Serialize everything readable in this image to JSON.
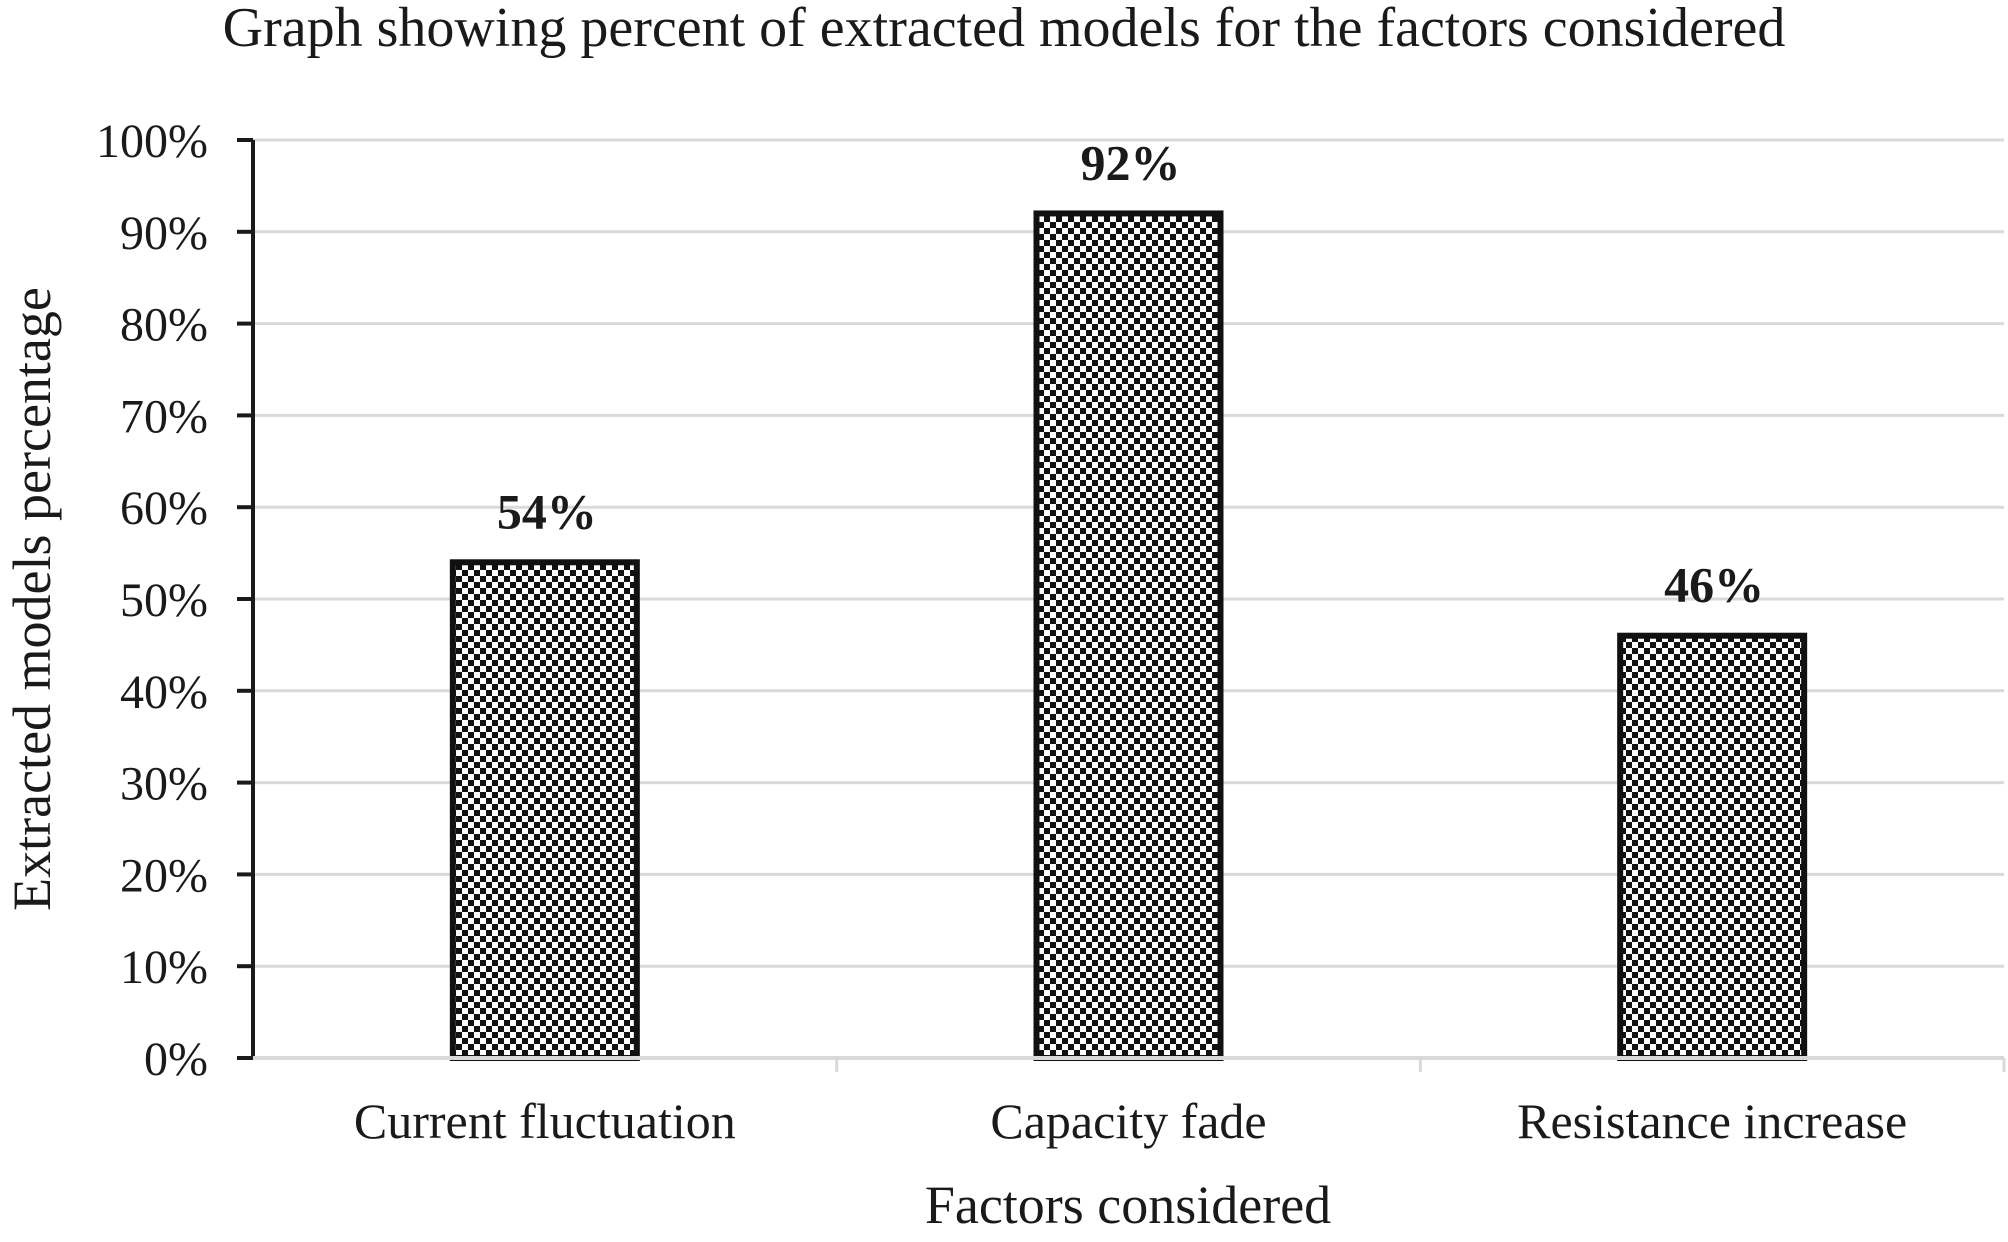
{
  "chart_data": {
    "type": "bar",
    "title": "Graph showing percent of extracted models for the factors considered",
    "xlabel": "Factors considered",
    "ylabel": "Extracted models percentage",
    "categories": [
      "Current fluctuation",
      "Capacity fade",
      "Resistance increase"
    ],
    "values": [
      54,
      92,
      46
    ],
    "data_labels": [
      "54%",
      "92%",
      "46%"
    ],
    "ylim": [
      0,
      100
    ],
    "yticks": [
      0,
      10,
      20,
      30,
      40,
      50,
      60,
      70,
      80,
      90,
      100
    ],
    "ytick_labels": [
      "0%",
      "10%",
      "20%",
      "30%",
      "40%",
      "50%",
      "60%",
      "70%",
      "80%",
      "90%",
      "100%"
    ],
    "grid": true,
    "legend": "none",
    "bar_fill": "black-and-white checkerboard pattern",
    "colors": {
      "bar_dark": "#111111",
      "bar_light": "#ffffff",
      "grid": "#d9d9d9",
      "axis": "#1a1a1a",
      "text": "#1a1a1a"
    }
  }
}
